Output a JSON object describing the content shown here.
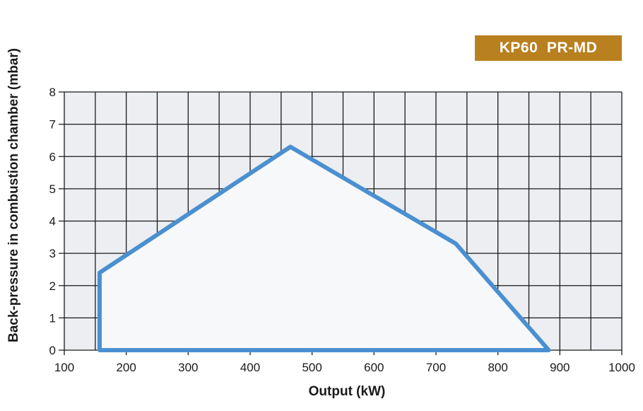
{
  "badge": {
    "label": "KP60  PR-MD",
    "color": "#b8801f"
  },
  "chart_data": {
    "type": "area",
    "title": "",
    "xlabel": "Output (kW)",
    "ylabel": "Back-pressure in combustion chamber (mbar)",
    "xlim": [
      100,
      1000
    ],
    "ylim": [
      0,
      8
    ],
    "xticks": [
      100,
      200,
      300,
      400,
      500,
      600,
      700,
      800,
      900,
      1000
    ],
    "yticks": [
      0,
      1,
      2,
      3,
      4,
      5,
      6,
      7,
      8
    ],
    "grid": true,
    "grid_minor_x_step": 50,
    "series": [
      {
        "x": [
          157,
          157,
          465,
          732,
          882,
          157
        ],
        "y": [
          0,
          2.4,
          6.3,
          3.3,
          0,
          0
        ]
      }
    ],
    "colors": {
      "outline": "#4a90d0",
      "fill": "#f7f8fa",
      "plot_bg": "#eceef1",
      "grid": "#1a1a1a"
    }
  }
}
